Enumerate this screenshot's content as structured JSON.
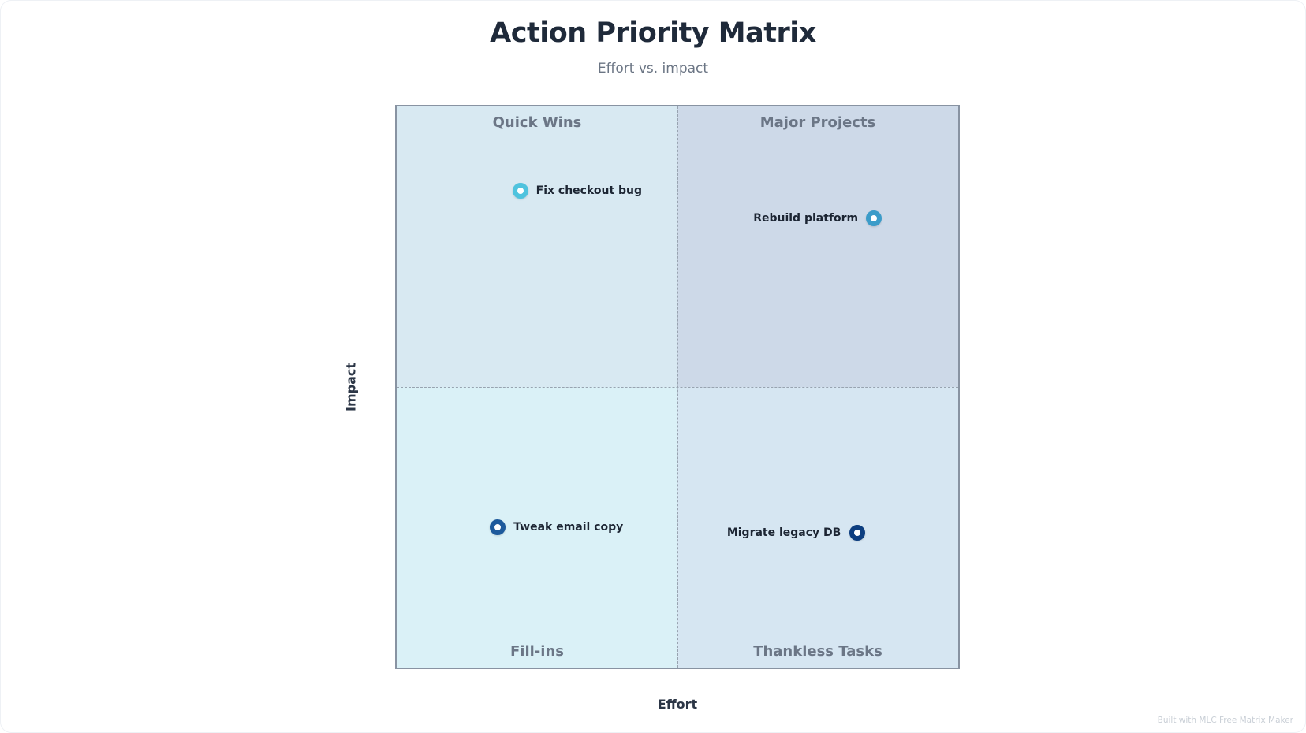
{
  "title": "Action Priority Matrix",
  "subtitle": "Effort vs. impact",
  "axes": {
    "x_label": "Effort",
    "y_label": "Impact"
  },
  "quadrants": {
    "top_left": "Quick Wins",
    "top_right": "Major Projects",
    "bottom_left": "Fill-ins",
    "bottom_right": "Thankless Tasks"
  },
  "items": [
    {
      "label": "Fix checkout bug",
      "effort": 0.22,
      "impact": 0.85,
      "color": "#4fc3de",
      "label_side": "right"
    },
    {
      "label": "Rebuild platform",
      "effort": 0.85,
      "impact": 0.8,
      "color": "#3b9cc9",
      "label_side": "left"
    },
    {
      "label": "Tweak email copy",
      "effort": 0.18,
      "impact": 0.25,
      "color": "#1d5a9c",
      "label_side": "right"
    },
    {
      "label": "Migrate legacy DB",
      "effort": 0.82,
      "impact": 0.24,
      "color": "#0d3e80",
      "label_side": "left"
    }
  ],
  "footer": "Built with MLC Free Matrix Maker"
}
